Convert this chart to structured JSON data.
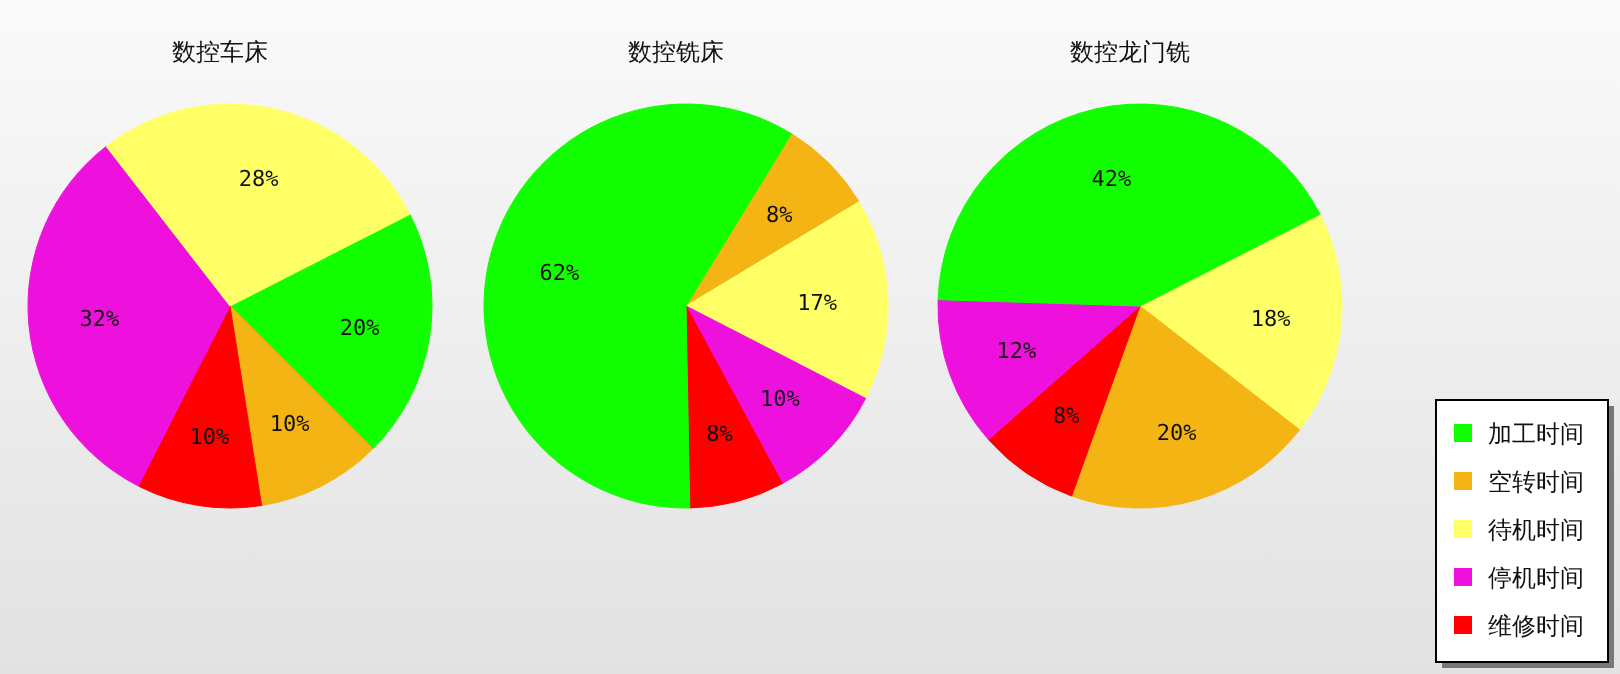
{
  "chart_data": [
    {
      "type": "pie",
      "title": "数控车床",
      "categories": [
        null,
        null,
        null,
        null,
        null
      ],
      "values": [
        20,
        10,
        28,
        32,
        10
      ],
      "value_labels": [
        "20%",
        "10%",
        "28%",
        "32%",
        "10%"
      ],
      "colors": [
        "#11ff00",
        "#f4b414",
        "#ffff66",
        "#ee11dd",
        "#ff0000"
      ]
    },
    {
      "type": "pie",
      "title": "数控铣床",
      "categories": [
        null,
        null,
        null,
        null,
        null
      ],
      "values": [
        62,
        8,
        17,
        10,
        8
      ],
      "value_labels": [
        "62%",
        "8%",
        "17%",
        "10%",
        "8%"
      ],
      "colors": [
        "#11ff00",
        "#f4b414",
        "#ffff66",
        "#ee11dd",
        "#ff0000"
      ]
    },
    {
      "type": "pie",
      "title": "数控龙门铣",
      "categories": [
        "加工时间",
        "空转时间",
        "待机时间",
        "停机时间",
        "维修时间"
      ],
      "values": [
        42,
        20,
        18,
        12,
        8
      ],
      "value_labels": [
        "42%",
        "20%",
        "18%",
        "12%",
        "8%"
      ],
      "colors": [
        "#11ff00",
        "#f4b414",
        "#ffff66",
        "#ee11dd",
        "#ff0000"
      ],
      "legend": "bottom right"
    }
  ]
}
